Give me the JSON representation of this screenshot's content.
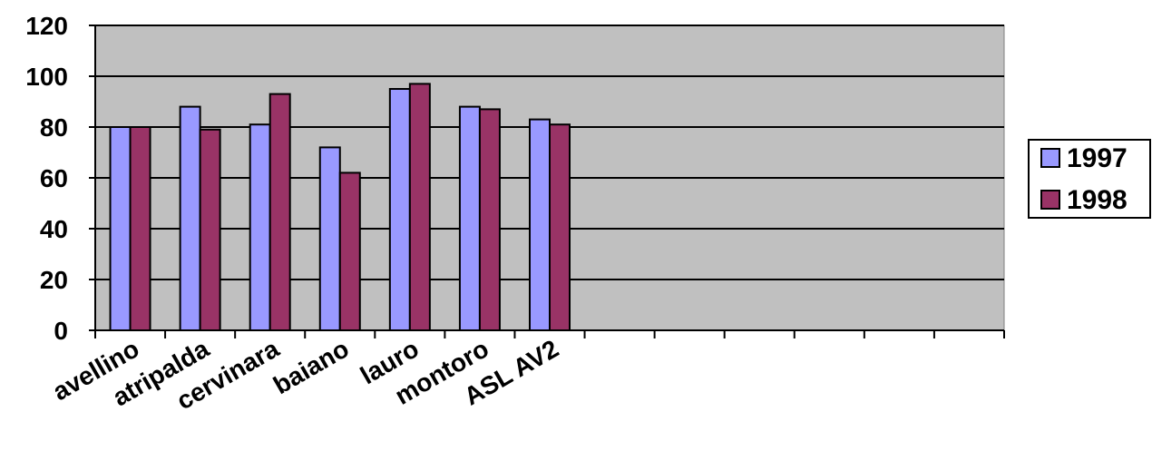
{
  "chart_data": {
    "type": "bar",
    "title": "",
    "xlabel": "",
    "ylabel": "",
    "ylim": [
      0,
      120
    ],
    "yticks": [
      0,
      20,
      40,
      60,
      80,
      100,
      120
    ],
    "ytick_labels": [
      "0",
      "20",
      "40",
      "60",
      "80",
      "100",
      "120"
    ],
    "grid": true,
    "legend_position": "right",
    "plot_background": "#C0C0C0",
    "category_slots": 13,
    "categories": [
      "avellino",
      "atripalda",
      "cervinara",
      "baiano",
      "lauro",
      "montoro",
      "ASL AV2"
    ],
    "series": [
      {
        "name": "1997",
        "color": "#9999FF",
        "values": [
          80,
          88,
          81,
          72,
          95,
          88,
          83
        ]
      },
      {
        "name": "1998",
        "color": "#993366",
        "values": [
          80,
          79,
          93,
          62,
          97,
          87,
          81
        ]
      }
    ]
  }
}
